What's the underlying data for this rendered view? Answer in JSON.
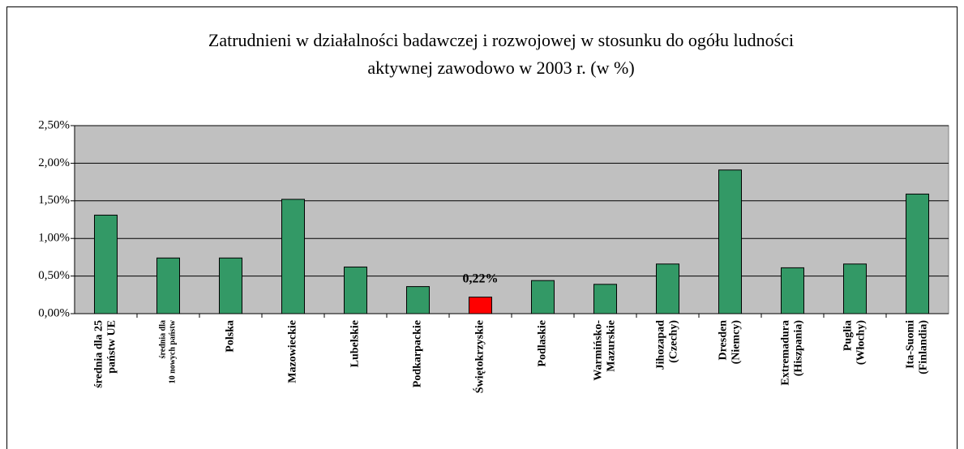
{
  "chart_data": {
    "type": "bar",
    "title": "Zatrudnieni w działalności badawczej i rozwojowej w stosunku do ogółu ludności\naktywnej zawodowo w 2003 r. (w %)",
    "categories": [
      "średnia dla 25\npaństw UE",
      "średnia dla\n10 nowych państw",
      "Polska",
      "Mazowieckie",
      "Lubelskie",
      "Podkarpackie",
      "Świętokrzyskie",
      "Podlaskie",
      "Warmińsko-\nMazurskie",
      "Jihozapad\n(Czechy)",
      "Dresden\n(Niemcy)",
      "Extremadura\n(Hiszpania)",
      "Puglia\n(Włochy)",
      "Ita-Suomi\n(Finlandia)"
    ],
    "values": [
      1.31,
      0.74,
      0.74,
      1.52,
      0.62,
      0.36,
      0.22,
      0.44,
      0.39,
      0.66,
      1.91,
      0.61,
      0.66,
      1.59
    ],
    "value_labels": [
      null,
      null,
      null,
      null,
      null,
      null,
      "0,22%",
      null,
      null,
      null,
      null,
      null,
      null,
      null
    ],
    "colors": [
      "#339966",
      "#339966",
      "#339966",
      "#339966",
      "#339966",
      "#339966",
      "#ff0000",
      "#339966",
      "#339966",
      "#339966",
      "#339966",
      "#339966",
      "#339966",
      "#339966"
    ],
    "ylim": [
      0,
      2.5
    ],
    "yticks": [
      {
        "value": 0,
        "label": "0,00%"
      },
      {
        "value": 0.5,
        "label": "0,50%"
      },
      {
        "value": 1,
        "label": "1,00%"
      },
      {
        "value": 1.5,
        "label": "1,50%"
      },
      {
        "value": 2,
        "label": "2,00%"
      },
      {
        "value": 2.5,
        "label": "2,50%"
      }
    ],
    "grid": true
  }
}
